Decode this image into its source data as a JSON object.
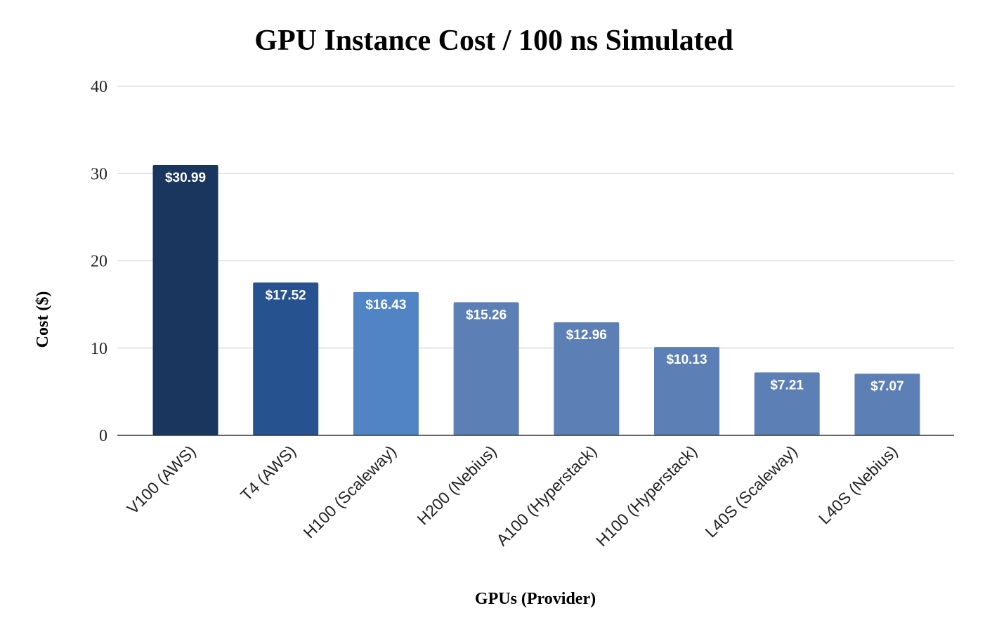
{
  "chart_data": {
    "type": "bar",
    "title": "GPU Instance Cost / 100 ns Simulated",
    "xlabel": "GPUs (Provider)",
    "ylabel": "Cost ($)",
    "ylim": [
      0,
      40
    ],
    "yticks": [
      "0",
      "10",
      "20",
      "30",
      "40"
    ],
    "grid": true,
    "categories": [
      "V100 (AWS)",
      "T4 (AWS)",
      "H100 (Scaleway)",
      "H200 (Nebius)",
      "A100 (Hyperstack)",
      "H100 (Hyperstack)",
      "L40S (Scaleway)",
      "L40S (Nebius)"
    ],
    "values": [
      30.99,
      17.52,
      16.43,
      15.26,
      12.96,
      10.13,
      7.21,
      7.07
    ],
    "data_labels": [
      "$30.99",
      "$17.52",
      "$16.43",
      "$15.26",
      "$12.96",
      "$10.13",
      "$7.21",
      "$7.07"
    ],
    "colors": [
      "#1b365e",
      "#26528f",
      "#5184c4",
      "#5c7fb6",
      "#5c7fb6",
      "#5c7fb6",
      "#5c7fb6",
      "#5c7fb6"
    ]
  }
}
